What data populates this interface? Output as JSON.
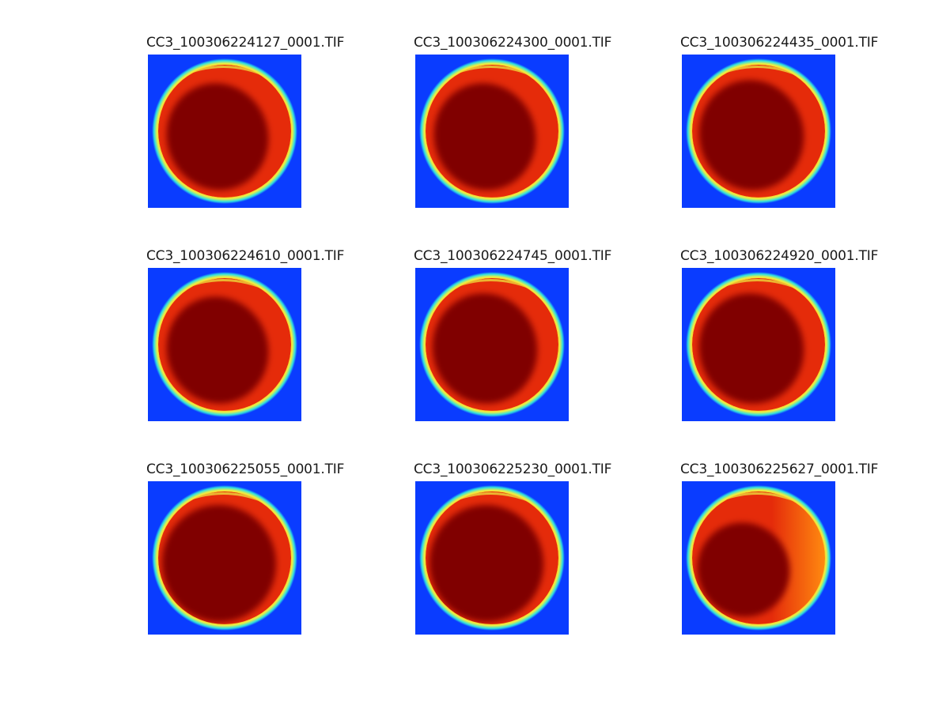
{
  "figure": {
    "panels": [
      {
        "title": "CC3_100306224127_0001.TIF",
        "variant": "a"
      },
      {
        "title": "CC3_100306224300_0001.TIF",
        "variant": "a"
      },
      {
        "title": "CC3_100306224435_0001.TIF",
        "variant": "b"
      },
      {
        "title": "CC3_100306224610_0001.TIF",
        "variant": "a"
      },
      {
        "title": "CC3_100306224745_0001.TIF",
        "variant": "b"
      },
      {
        "title": "CC3_100306224920_0001.TIF",
        "variant": "b"
      },
      {
        "title": "CC3_100306225055_0001.TIF",
        "variant": "c"
      },
      {
        "title": "CC3_100306225230_0001.TIF",
        "variant": "c"
      },
      {
        "title": "CC3_100306225627_0001.TIF",
        "variant": "d"
      }
    ],
    "colormap": {
      "background": "#0a3cff",
      "cyan": "#30e0e0",
      "yellow": "#f0f040",
      "orange": "#ff8a10",
      "red": "#e52b0a",
      "dark_red": "#800000"
    }
  }
}
